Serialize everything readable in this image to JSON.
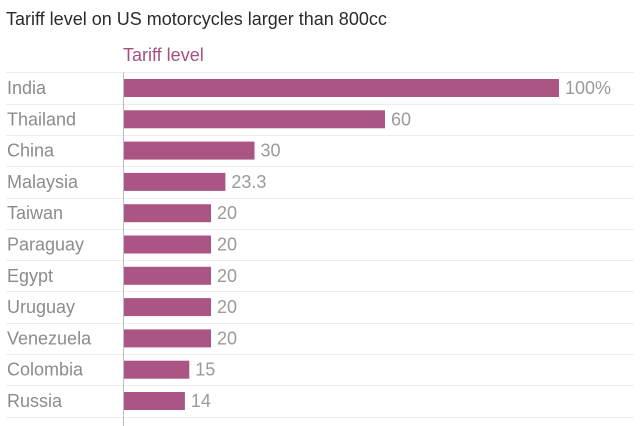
{
  "chart_data": {
    "type": "bar",
    "orientation": "horizontal",
    "title": "Tariff level on US motorcycles larger than 800cc",
    "series_name": "Tariff level",
    "categories": [
      "India",
      "Thailand",
      "China",
      "Malaysia",
      "Taiwan",
      "Paraguay",
      "Egypt",
      "Uruguay",
      "Venezuela",
      "Colombia",
      "Russia"
    ],
    "values": [
      100,
      60,
      30,
      23.3,
      20,
      20,
      20,
      20,
      20,
      15,
      14
    ],
    "value_labels": [
      "100%",
      "60",
      "30",
      "23.3",
      "20",
      "20",
      "20",
      "20",
      "20",
      "15",
      "14"
    ],
    "xlim": [
      0,
      100
    ],
    "grid": true,
    "bar_color": "#ab5585"
  }
}
